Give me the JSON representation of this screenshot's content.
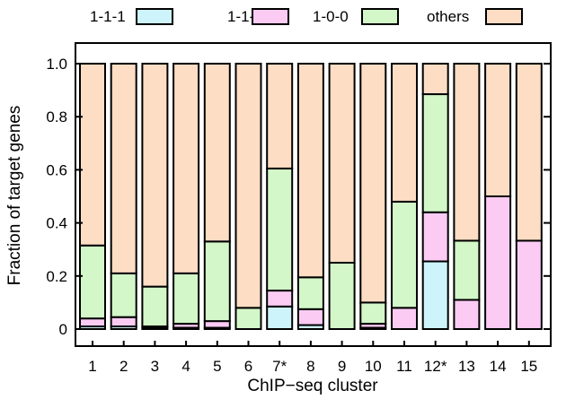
{
  "chart_data": {
    "type": "bar",
    "stacked": true,
    "xlabel": "ChIP−seq cluster",
    "ylabel": "Fraction of target genes",
    "ylim": [
      0,
      1.0
    ],
    "yticks": [
      "0",
      "0.2",
      "0.4",
      "0.6",
      "0.8",
      "1.0"
    ],
    "ytick_values": [
      0,
      0.2,
      0.4,
      0.6,
      0.8,
      1.0
    ],
    "grid": false,
    "legend_position": "top",
    "categories": [
      "1",
      "2",
      "3",
      "4",
      "5",
      "6",
      "7*",
      "8",
      "9",
      "10",
      "11",
      "12*",
      "13",
      "14",
      "15"
    ],
    "series": [
      {
        "name": "1-1-1",
        "color": "#cdf3fb",
        "values": [
          0.01,
          0.01,
          0.005,
          0.005,
          0.005,
          0,
          0.085,
          0.015,
          0,
          0.005,
          0,
          0.255,
          0,
          0,
          0
        ]
      },
      {
        "name": "1-1-0",
        "color": "#fccbf4",
        "values": [
          0.03,
          0.035,
          0.005,
          0.015,
          0.025,
          0,
          0.06,
          0.06,
          0,
          0.015,
          0.08,
          0.185,
          0.11,
          0.5,
          0.333
        ]
      },
      {
        "name": "1-0-0",
        "color": "#d3f7c8",
        "values": [
          0.275,
          0.165,
          0.15,
          0.19,
          0.3,
          0.08,
          0.46,
          0.12,
          0.25,
          0.08,
          0.4,
          0.445,
          0.223,
          0,
          0
        ]
      },
      {
        "name": "others",
        "color": "#fdddc3",
        "values": [
          0.685,
          0.79,
          0.84,
          0.79,
          0.67,
          0.92,
          0.395,
          0.805,
          0.75,
          0.9,
          0.52,
          0.115,
          0.667,
          0.5,
          0.667
        ]
      }
    ]
  }
}
